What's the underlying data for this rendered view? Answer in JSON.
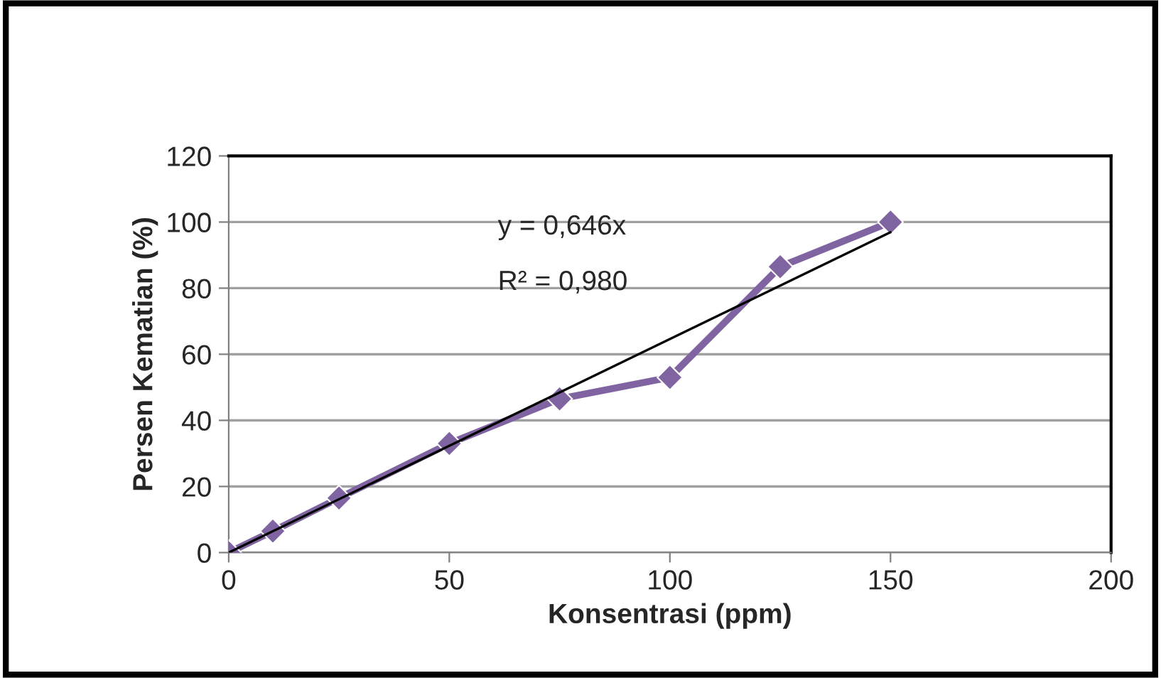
{
  "chart_data": {
    "type": "line",
    "xlabel": "Konsentrasi (ppm)",
    "ylabel": "Persen Kematian (%)",
    "x": [
      0,
      10,
      25,
      50,
      75,
      100,
      125,
      150
    ],
    "series": [
      {
        "color": "#8064a2",
        "values": [
          0,
          6.5,
          16.5,
          33,
          46.5,
          53,
          86.5,
          100
        ],
        "marker": "diamond"
      },
      {
        "type": "line",
        "color": "#000000",
        "x": [
          0,
          150
        ],
        "values": [
          0,
          96.9
        ],
        "marker": "none"
      }
    ],
    "annotations": [
      "y = 0,646x",
      "R² = 0,980"
    ],
    "xlim": [
      0,
      200
    ],
    "xticks": [
      0,
      50,
      100,
      150,
      200
    ],
    "ylim": [
      0,
      120
    ],
    "yticks": [
      0,
      20,
      40,
      60,
      80,
      100,
      120
    ],
    "grid": "y",
    "legend": false
  }
}
